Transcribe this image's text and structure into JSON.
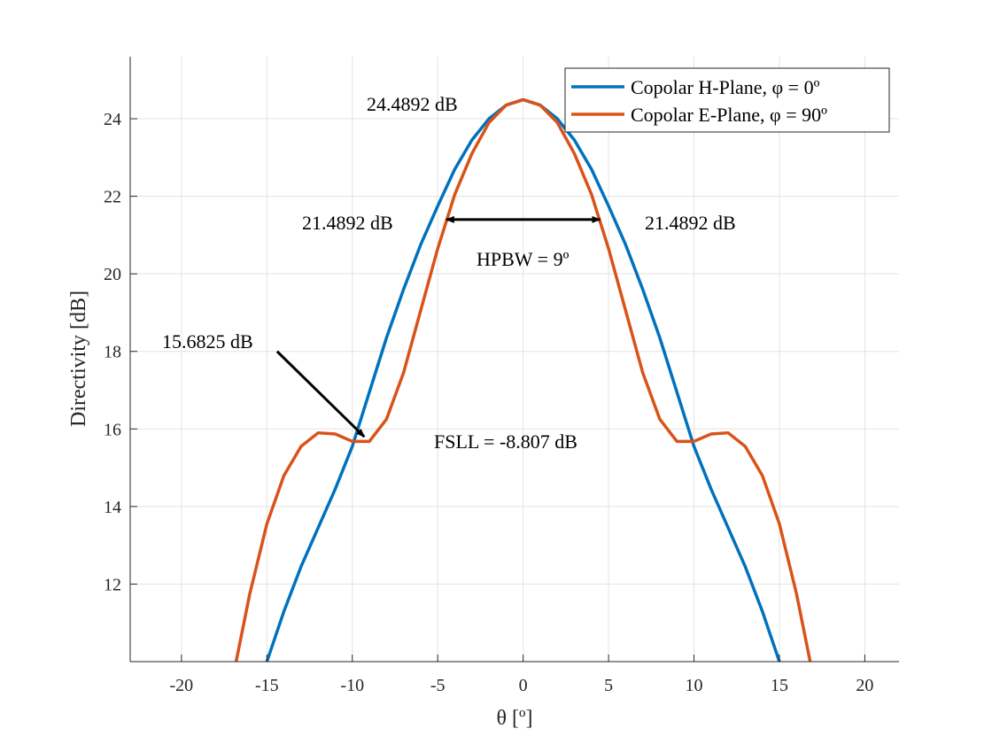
{
  "chart_data": {
    "type": "line",
    "xlabel": "θ [º]",
    "ylabel": "Directivity [dB]",
    "xlim": [
      -23,
      22
    ],
    "ylim": [
      10,
      25.6
    ],
    "xticks": [
      -20,
      -15,
      -10,
      -5,
      0,
      5,
      10,
      15,
      20
    ],
    "yticks": [
      12,
      14,
      16,
      18,
      20,
      22,
      24
    ],
    "grid": true,
    "legend_position": "top-right",
    "series": [
      {
        "name": "Copolar H-Plane, φ = 0º",
        "color": "#0072BD",
        "x": [
          -15,
          -14,
          -13,
          -12,
          -11,
          -10,
          -9,
          -8,
          -7,
          -6,
          -5,
          -4,
          -3,
          -2,
          -1,
          0,
          1,
          2,
          3,
          4,
          5,
          6,
          7,
          8,
          9,
          10,
          11,
          12,
          13,
          14,
          15
        ],
        "y": [
          10.0,
          11.3,
          12.45,
          13.45,
          14.45,
          15.55,
          16.95,
          18.35,
          19.6,
          20.75,
          21.75,
          22.7,
          23.45,
          24.0,
          24.35,
          24.49,
          24.35,
          24.0,
          23.45,
          22.7,
          21.75,
          20.75,
          19.6,
          18.35,
          16.95,
          15.55,
          14.45,
          13.45,
          12.45,
          11.3,
          10.0
        ]
      },
      {
        "name": "Copolar E-Plane, φ = 90º",
        "color": "#D95319",
        "x": [
          -16.8,
          -16,
          -15,
          -14,
          -13,
          -12,
          -11,
          -10,
          -9,
          -8,
          -7,
          -6,
          -5,
          -4,
          -3,
          -2,
          -1,
          0,
          1,
          2,
          3,
          4,
          5,
          6,
          7,
          8,
          9,
          10,
          11,
          12,
          13,
          14,
          15,
          16,
          16.8
        ],
        "y": [
          10.0,
          11.75,
          13.55,
          14.8,
          15.55,
          15.9,
          15.87,
          15.68,
          15.68,
          16.25,
          17.45,
          19.05,
          20.65,
          22.05,
          23.1,
          23.9,
          24.35,
          24.49,
          24.35,
          23.9,
          23.1,
          22.05,
          20.65,
          19.05,
          17.45,
          16.25,
          15.68,
          15.68,
          15.87,
          15.9,
          15.55,
          14.8,
          13.55,
          11.75,
          10.0
        ]
      }
    ],
    "annotations": {
      "peak": "24.4892 dB",
      "left_half_power": "21.4892 dB",
      "right_half_power": "21.4892 dB",
      "hpbw": "HPBW = 9º",
      "side_lobe_value": "15.6825 dB",
      "fsll": "FSLL = -8.807 dB"
    },
    "hpbw_arrow_x": [
      -4.5,
      4.5
    ],
    "hpbw_arrow_y": 21.4,
    "sidelobe_arrow_from": [
      -14.4,
      18.0
    ],
    "sidelobe_arrow_to": [
      -9.3,
      15.8
    ]
  }
}
